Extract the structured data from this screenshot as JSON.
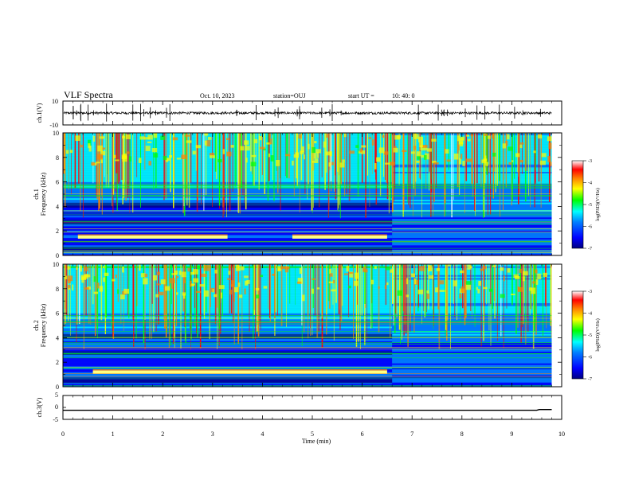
{
  "header": {
    "title": "VLF Spectra",
    "date": "Oct. 10, 2023",
    "station": "station=OUJ",
    "start_label": "start  UT  =",
    "start_time": "10: 40: 0"
  },
  "colors": {
    "spectrogram_stops": [
      "#000080",
      "#0000ff",
      "#0080ff",
      "#00ffff",
      "#00ff00",
      "#ffff00",
      "#ff8000",
      "#ff0000",
      "#ffffff"
    ],
    "trace": "#000000"
  },
  "chart_data": [
    {
      "type": "line",
      "name": "ch1-waveform",
      "ylabel": "ch.1(V)",
      "ylim": [
        -10,
        10
      ],
      "yticks": [
        "10",
        "-10"
      ],
      "baseline_v": 0,
      "noise_band_v": [
        -1.0,
        1.0
      ],
      "x_range_min": [
        0,
        9.8
      ]
    },
    {
      "type": "heatmap",
      "name": "ch1-spectrogram",
      "ylabel": "ch.1\nFrequency (kHz)",
      "ylim": [
        0,
        10
      ],
      "yticks": [
        "0",
        "2",
        "4",
        "6",
        "8",
        "10"
      ],
      "x_range_min": [
        0,
        9.8
      ],
      "colorbar": {
        "label": "log(PSD)(V²/Hz)",
        "range": [
          -7,
          -3
        ],
        "ticks": [
          "-3",
          "-4",
          "-5",
          "-6",
          "-7"
        ]
      },
      "features": [
        {
          "description": "broadband sferics",
          "freq_khz": [
            4,
            10
          ]
        },
        {
          "description": "tone band",
          "freq_khz": 1.5,
          "t_min": [
            0.3,
            3.3
          ]
        },
        {
          "description": "tone band",
          "freq_khz": 1.5,
          "t_min": [
            4.6,
            6.5
          ]
        },
        {
          "description": "background change",
          "t_min": 6.6
        }
      ]
    },
    {
      "type": "heatmap",
      "name": "ch2-spectrogram",
      "ylabel": "ch.2\nFrequency (kHz)",
      "ylim": [
        0,
        10
      ],
      "yticks": [
        "0",
        "2",
        "4",
        "6",
        "8",
        "10"
      ],
      "x_range_min": [
        0,
        9.8
      ],
      "colorbar": {
        "label": "log(PSD)(V²/Hz)",
        "range": [
          -7,
          -3
        ],
        "ticks": [
          "-3",
          "-4",
          "-5",
          "-6",
          "-7"
        ]
      },
      "features": [
        {
          "description": "broadband sferics",
          "freq_khz": [
            4,
            10
          ]
        },
        {
          "description": "tone band",
          "freq_khz": 1.2,
          "t_min": [
            0.6,
            6.5
          ]
        },
        {
          "description": "background change",
          "t_min": 6.6
        }
      ]
    },
    {
      "type": "line",
      "name": "ch3-trace",
      "ylabel": "ch.3(V)",
      "ylim": [
        -5,
        5
      ],
      "yticks": [
        "5",
        "0",
        "-5"
      ],
      "x": [
        0,
        9.5,
        9.55,
        9.8
      ],
      "y": [
        -1.2,
        -1.2,
        -0.9,
        -0.9
      ],
      "x_range_min": [
        0,
        9.8
      ]
    }
  ],
  "xaxis": {
    "label": "Time  (min)",
    "ticks": [
      "0",
      "1",
      "2",
      "3",
      "4",
      "5",
      "6",
      "7",
      "8",
      "9",
      "10"
    ],
    "range": [
      0,
      10
    ]
  }
}
